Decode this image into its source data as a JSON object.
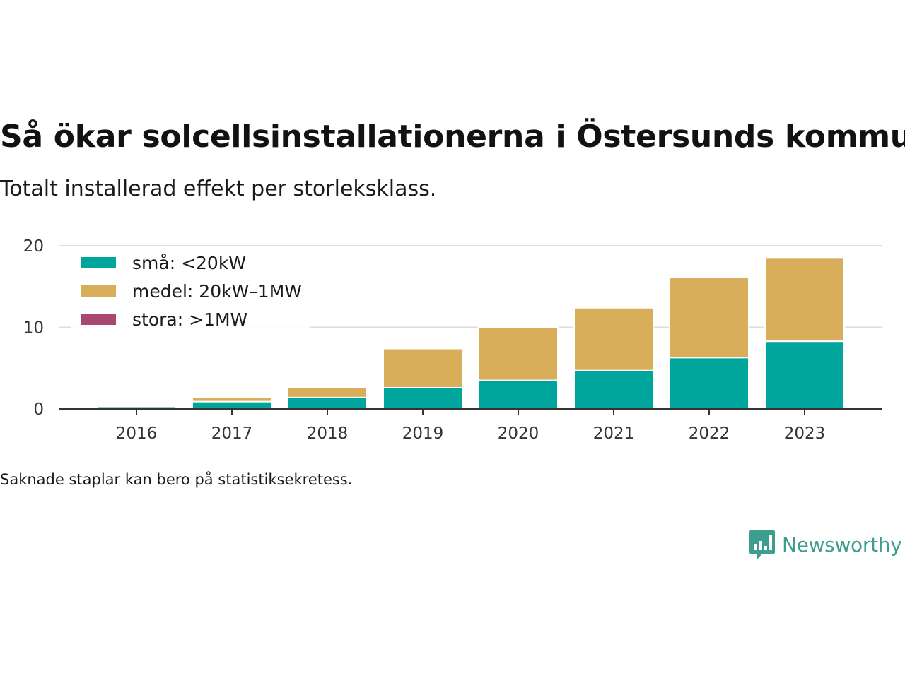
{
  "header": {
    "title": "Så ökar solcellsinstallationerna i Östersunds kommun",
    "subtitle": "Totalt installerad effekt per storleksklass."
  },
  "chart_data": {
    "type": "bar",
    "stacked": true,
    "categories": [
      "2016",
      "2017",
      "2018",
      "2019",
      "2020",
      "2021",
      "2022",
      "2023"
    ],
    "series": [
      {
        "name": "små: <20kW",
        "color": "#00a59b",
        "values": [
          0.3,
          0.9,
          1.4,
          2.6,
          3.5,
          4.7,
          6.3,
          8.3
        ]
      },
      {
        "name": "medel: 20kW–1MW",
        "color": "#d9ae5b",
        "values": [
          0.0,
          0.5,
          1.2,
          4.8,
          6.5,
          7.7,
          9.8,
          10.2
        ]
      },
      {
        "name": "stora: >1MW",
        "color": "#a8486f",
        "values": [
          0,
          0,
          0,
          0,
          0,
          0,
          0,
          0
        ]
      }
    ],
    "ylim": [
      0,
      20
    ],
    "yticks": [
      0,
      10,
      20
    ],
    "grid": true,
    "legend_position": "top-left"
  },
  "footer": {
    "note": "Saknade staplar kan bero på statistiksekretess.",
    "brand": "Newsworthy",
    "brand_color": "#3d9d8e",
    "brand_icon": "bar-chart-speech-bubble-icon"
  }
}
